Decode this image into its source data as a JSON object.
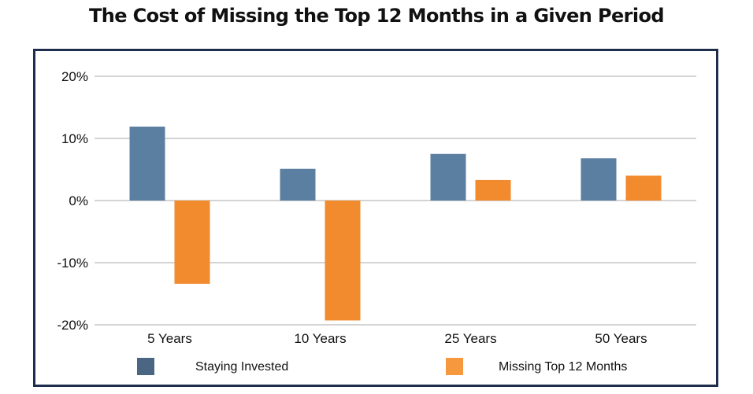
{
  "chart_data": {
    "type": "bar",
    "title": "The Cost of Missing the Top 12 Months in a Given Period",
    "categories": [
      "5 Years",
      "10 Years",
      "25 Years",
      "50 Years"
    ],
    "series": [
      {
        "name": "Staying Invested",
        "color": "#5b7fa0",
        "values": [
          11.9,
          5.1,
          7.5,
          6.8
        ]
      },
      {
        "name": "Missing Top 12 Months",
        "color": "#f28a2e",
        "values": [
          -13.4,
          -19.3,
          3.3,
          4.0
        ]
      }
    ],
    "ylim": [
      -20,
      20
    ],
    "yticks": [
      20,
      10,
      0,
      -10,
      -20
    ],
    "ytick_labels": [
      "20%",
      "10%",
      "0%",
      "-10%",
      "-20%"
    ],
    "grid": true,
    "legend": "bottom",
    "legend_colors": [
      "#4a6683",
      "#f6993e"
    ]
  }
}
